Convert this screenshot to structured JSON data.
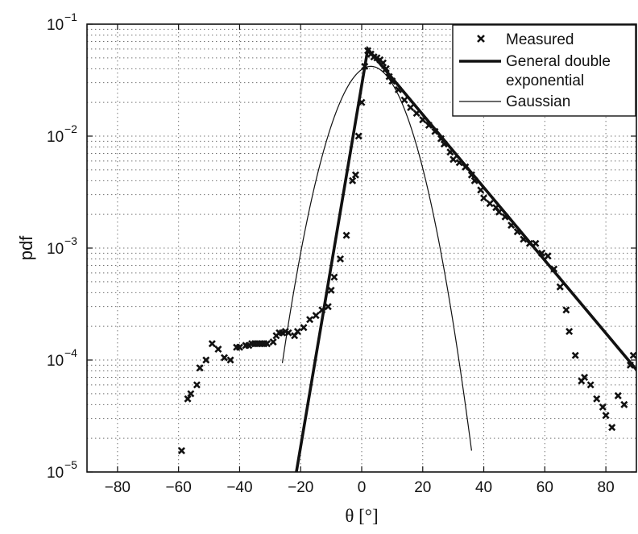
{
  "chart_data": {
    "type": "scatter",
    "xlabel": "θ [°]",
    "ylabel": "pdf",
    "xlim": [
      -90,
      90
    ],
    "ylim": [
      1e-05,
      0.1
    ],
    "yscale": "log",
    "grid": true,
    "legend_position": "top-right",
    "x_ticks": [
      -80,
      -60,
      -40,
      -20,
      0,
      20,
      40,
      60,
      80
    ],
    "x_tick_labels": [
      "−80",
      "−60",
      "−40",
      "−20",
      "0",
      "20",
      "40",
      "60",
      "80"
    ],
    "y_ticks": [
      1e-05,
      0.0001,
      0.001,
      0.01,
      0.1
    ],
    "y_tick_labels": [
      {
        "base": "10",
        "exp": "−5"
      },
      {
        "base": "10",
        "exp": "−4"
      },
      {
        "base": "10",
        "exp": "−3"
      },
      {
        "base": "10",
        "exp": "−2"
      },
      {
        "base": "10",
        "exp": "−1"
      }
    ],
    "legend": [
      {
        "label": "Measured",
        "style": "marker"
      },
      {
        "label": "General double exponential",
        "label_lines": [
          "General double",
          "exponential"
        ],
        "style": "thick-line"
      },
      {
        "label": "Gaussian",
        "style": "thin-line"
      }
    ],
    "series": [
      {
        "name": "Measured",
        "style": "marker",
        "points": [
          [
            -59,
            1.55e-05
          ],
          [
            -57,
            4.5e-05
          ],
          [
            -56,
            5e-05
          ],
          [
            -54,
            6e-05
          ],
          [
            -53,
            8.5e-05
          ],
          [
            -51,
            0.0001
          ],
          [
            -49,
            0.00014
          ],
          [
            -47,
            0.000125
          ],
          [
            -45,
            0.000105
          ],
          [
            -43,
            0.0001
          ],
          [
            -41,
            0.00013
          ],
          [
            -40,
            0.00013
          ],
          [
            -38,
            0.000135
          ],
          [
            -37,
            0.000135
          ],
          [
            -36,
            0.00014
          ],
          [
            -35,
            0.00014
          ],
          [
            -34,
            0.00014
          ],
          [
            -33,
            0.00014
          ],
          [
            -32,
            0.00014
          ],
          [
            -31,
            0.00014
          ],
          [
            -29,
            0.000145
          ],
          [
            -28,
            0.000165
          ],
          [
            -27,
            0.000175
          ],
          [
            -26,
            0.000175
          ],
          [
            -25,
            0.00018
          ],
          [
            -24,
            0.000175
          ],
          [
            -22,
            0.000165
          ],
          [
            -21,
            0.00018
          ],
          [
            -19,
            0.000195
          ],
          [
            -17,
            0.00023
          ],
          [
            -15,
            0.00025
          ],
          [
            -13,
            0.00028
          ],
          [
            -11,
            0.0003
          ],
          [
            -10,
            0.00042
          ],
          [
            -9,
            0.00055
          ],
          [
            -7,
            0.0008
          ],
          [
            -5,
            0.0013
          ],
          [
            -3,
            0.004
          ],
          [
            -2,
            0.0045
          ],
          [
            -1,
            0.01
          ],
          [
            0,
            0.02
          ],
          [
            1,
            0.042
          ],
          [
            2,
            0.058
          ],
          [
            3,
            0.054
          ],
          [
            4,
            0.051
          ],
          [
            5,
            0.05
          ],
          [
            6,
            0.048
          ],
          [
            7,
            0.045
          ],
          [
            8,
            0.04
          ],
          [
            9,
            0.034
          ],
          [
            10,
            0.031
          ],
          [
            12,
            0.026
          ],
          [
            14,
            0.021
          ],
          [
            16,
            0.018
          ],
          [
            18,
            0.016
          ],
          [
            20,
            0.014
          ],
          [
            22,
            0.0125
          ],
          [
            24,
            0.011
          ],
          [
            26,
            0.0095
          ],
          [
            27,
            0.0085
          ],
          [
            29,
            0.0072
          ],
          [
            30,
            0.0062
          ],
          [
            32,
            0.0058
          ],
          [
            34,
            0.0053
          ],
          [
            36,
            0.0045
          ],
          [
            37,
            0.004
          ],
          [
            39,
            0.0033
          ],
          [
            40,
            0.0028
          ],
          [
            42,
            0.0025
          ],
          [
            44,
            0.0023
          ],
          [
            45,
            0.0021
          ],
          [
            47,
            0.0019
          ],
          [
            49,
            0.0016
          ],
          [
            51,
            0.0014
          ],
          [
            53,
            0.0012
          ],
          [
            55,
            0.0011
          ],
          [
            57,
            0.0011
          ],
          [
            59,
            0.0009
          ],
          [
            61,
            0.00085
          ],
          [
            63,
            0.00065
          ],
          [
            65,
            0.00045
          ],
          [
            67,
            0.00028
          ],
          [
            68,
            0.00018
          ],
          [
            70,
            0.00011
          ],
          [
            72,
            6.5e-05
          ],
          [
            73,
            7e-05
          ],
          [
            75,
            6e-05
          ],
          [
            77,
            4.5e-05
          ],
          [
            79,
            3.8e-05
          ],
          [
            80,
            3.2e-05
          ],
          [
            82,
            2.5e-05
          ],
          [
            84,
            4.8e-05
          ],
          [
            86,
            4e-05
          ],
          [
            88,
            9e-05
          ],
          [
            89,
            0.00011
          ]
        ]
      },
      {
        "name": "General double exponential",
        "style": "thick-line",
        "points": [
          [
            -21.4,
            1e-05
          ],
          [
            2,
            0.06
          ],
          [
            90,
            8.2e-05
          ]
        ]
      },
      {
        "name": "Gaussian",
        "style": "thin-line",
        "function": "gaussian",
        "peak": 0.042,
        "mean": 3,
        "sigma": 8.3,
        "x_range": [
          -26,
          36
        ]
      }
    ]
  }
}
